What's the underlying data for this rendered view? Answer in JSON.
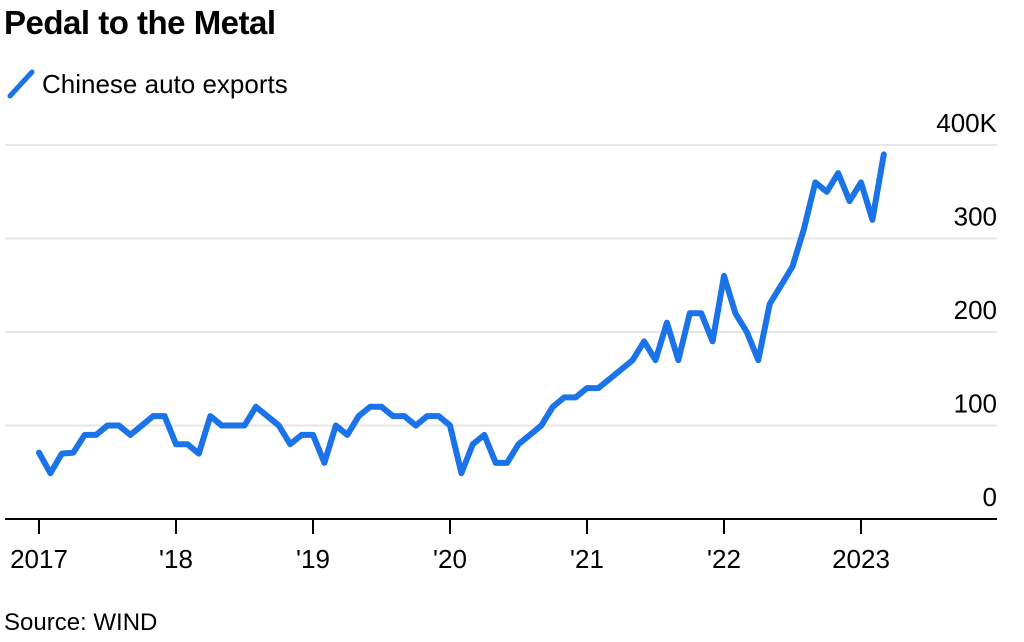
{
  "title": "Pedal to the Metal",
  "source": "Source: WIND",
  "colors": {
    "line": "#1a73e8",
    "grid": "#e6e6e6",
    "axis": "#000000"
  },
  "legend": {
    "label": "Chinese auto exports",
    "icon": "line-swatch-icon"
  },
  "chart_data": {
    "type": "line",
    "title": "Pedal to the Metal",
    "xlabel": "",
    "ylabel": "",
    "ylim": [
      0,
      400
    ],
    "yunit": "K",
    "y_ticks": [
      {
        "value": 0,
        "label": "0"
      },
      {
        "value": 100,
        "label": "100"
      },
      {
        "value": 200,
        "label": "200"
      },
      {
        "value": 300,
        "label": "300"
      },
      {
        "value": 400,
        "label": "400K"
      }
    ],
    "x_ticks": [
      {
        "year": 2017,
        "label": "2017"
      },
      {
        "year": 2018,
        "label": "'18"
      },
      {
        "year": 2019,
        "label": "'19"
      },
      {
        "year": 2020,
        "label": "'20"
      },
      {
        "year": 2021,
        "label": "'21"
      },
      {
        "year": 2022,
        "label": "'22"
      },
      {
        "year": 2023,
        "label": "2023"
      }
    ],
    "grid": true,
    "legend_position": "top-left",
    "series": [
      {
        "name": "Chinese auto exports",
        "x": [
          "2017-01",
          "2017-02",
          "2017-03",
          "2017-04",
          "2017-05",
          "2017-06",
          "2017-07",
          "2017-08",
          "2017-09",
          "2017-10",
          "2017-11",
          "2017-12",
          "2018-01",
          "2018-02",
          "2018-03",
          "2018-04",
          "2018-05",
          "2018-06",
          "2018-07",
          "2018-08",
          "2018-09",
          "2018-10",
          "2018-11",
          "2018-12",
          "2019-01",
          "2019-02",
          "2019-03",
          "2019-04",
          "2019-05",
          "2019-06",
          "2019-07",
          "2019-08",
          "2019-09",
          "2019-10",
          "2019-11",
          "2019-12",
          "2020-01",
          "2020-02",
          "2020-03",
          "2020-04",
          "2020-05",
          "2020-06",
          "2020-07",
          "2020-08",
          "2020-09",
          "2020-10",
          "2020-11",
          "2020-12",
          "2021-01",
          "2021-02",
          "2021-03",
          "2021-04",
          "2021-05",
          "2021-06",
          "2021-07",
          "2021-08",
          "2021-09",
          "2021-10",
          "2021-11",
          "2021-12",
          "2022-01",
          "2022-02",
          "2022-03",
          "2022-04",
          "2022-05",
          "2022-06",
          "2022-07",
          "2022-08",
          "2022-09",
          "2022-10",
          "2022-11",
          "2022-12",
          "2023-01",
          "2023-02",
          "2023-03"
        ],
        "values": [
          71,
          49,
          70,
          71,
          90,
          90,
          100,
          100,
          90,
          100,
          110,
          110,
          80,
          80,
          70,
          110,
          100,
          100,
          100,
          120,
          110,
          100,
          80,
          90,
          90,
          60,
          100,
          90,
          110,
          120,
          120,
          110,
          110,
          100,
          110,
          110,
          100,
          49,
          80,
          90,
          60,
          60,
          80,
          90,
          100,
          120,
          130,
          130,
          140,
          140,
          150,
          160,
          170,
          190,
          170,
          210,
          170,
          220,
          220,
          190,
          260,
          220,
          200,
          170,
          230,
          250,
          270,
          310,
          360,
          350,
          370,
          340,
          360,
          320,
          390
        ]
      }
    ]
  }
}
